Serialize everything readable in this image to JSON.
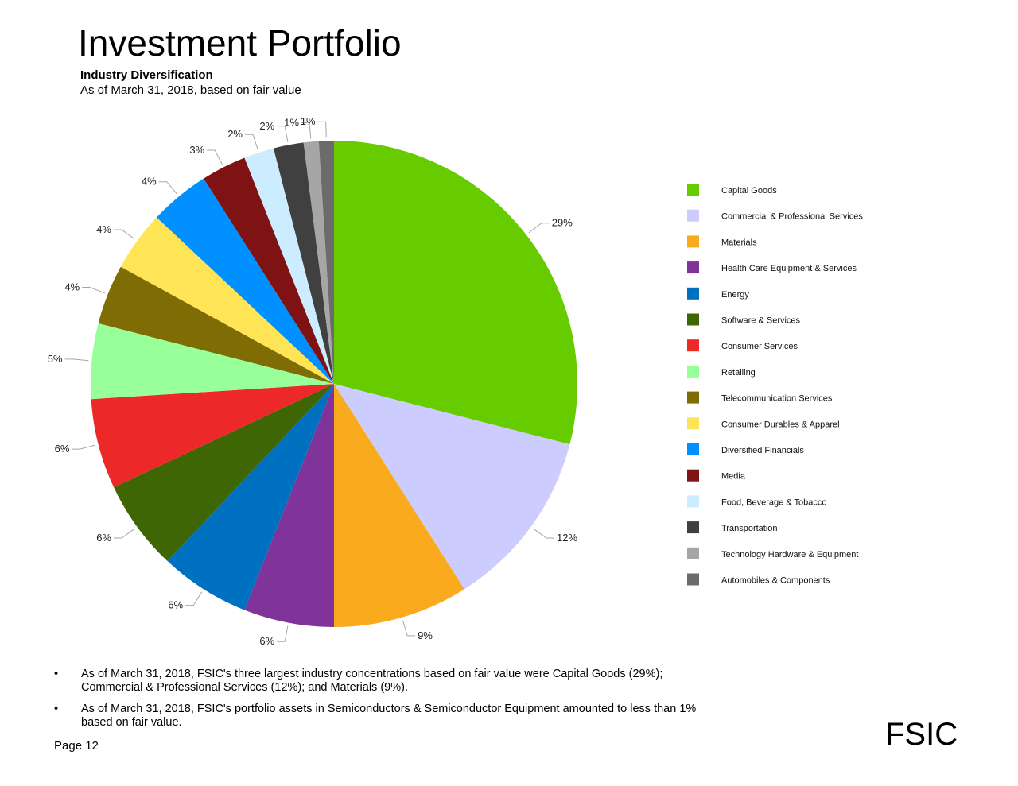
{
  "title": "Investment Portfolio",
  "subtitle": "Industry Diversification",
  "as_of": "As of March 31, 2018, based on fair value",
  "bullets": [
    "As of March 31, 2018, FSIC's three largest industry concentrations based on fair value were Capital Goods (29%); Commercial & Professional Services (12%); and Materials (9%).",
    "As of March 31, 2018, FSIC's portfolio assets in Semiconductors & Semiconductor Equipment amounted to less than 1% based on fair value."
  ],
  "bullet_symbol": "•",
  "page_label": "Page 12",
  "brand": "FSIC",
  "chart_data": {
    "type": "pie",
    "title": "Industry Diversification",
    "start": "12 o'clock, clockwise",
    "legend_position": "right",
    "slices": [
      {
        "label": "Capital Goods",
        "value": 29,
        "value_label": "29%",
        "color": "#66CC00"
      },
      {
        "label": "Commercial & Professional Services",
        "value": 12,
        "value_label": "12%",
        "color": "#CCCCFF"
      },
      {
        "label": "Materials",
        "value": 9,
        "value_label": "9%",
        "color": "#F9AB1D"
      },
      {
        "label": "Health Care Equipment & Services",
        "value": 6,
        "value_label": "6%",
        "color": "#803399"
      },
      {
        "label": "Energy",
        "value": 6,
        "value_label": "6%",
        "color": "#0070C0"
      },
      {
        "label": "Software & Services",
        "value": 6,
        "value_label": "6%",
        "color": "#3F6604"
      },
      {
        "label": "Consumer Services",
        "value": 6,
        "value_label": "6%",
        "color": "#EC2828"
      },
      {
        "label": "Retailing",
        "value": 5,
        "value_label": "5%",
        "color": "#99FF99"
      },
      {
        "label": "Telecommunication Services",
        "value": 4,
        "value_label": "4%",
        "color": "#7F6C05"
      },
      {
        "label": "Consumer Durables & Apparel",
        "value": 4,
        "value_label": "4%",
        "color": "#FFE455"
      },
      {
        "label": "Diversified Financials",
        "value": 4,
        "value_label": "4%",
        "color": "#0090FF"
      },
      {
        "label": "Media",
        "value": 3,
        "value_label": "3%",
        "color": "#7F1313"
      },
      {
        "label": "Food, Beverage & Tobacco",
        "value": 2,
        "value_label": "2%",
        "color": "#CCECFF"
      },
      {
        "label": "Transportation",
        "value": 2,
        "value_label": "2%",
        "color": "#404040"
      },
      {
        "label": "Technology Hardware & Equipment",
        "value": 1,
        "value_label": "1%",
        "color": "#A6A6A6"
      },
      {
        "label": "Automobiles & Components",
        "value": 1,
        "value_label": "1%",
        "color": "#6B6B6B"
      }
    ]
  }
}
